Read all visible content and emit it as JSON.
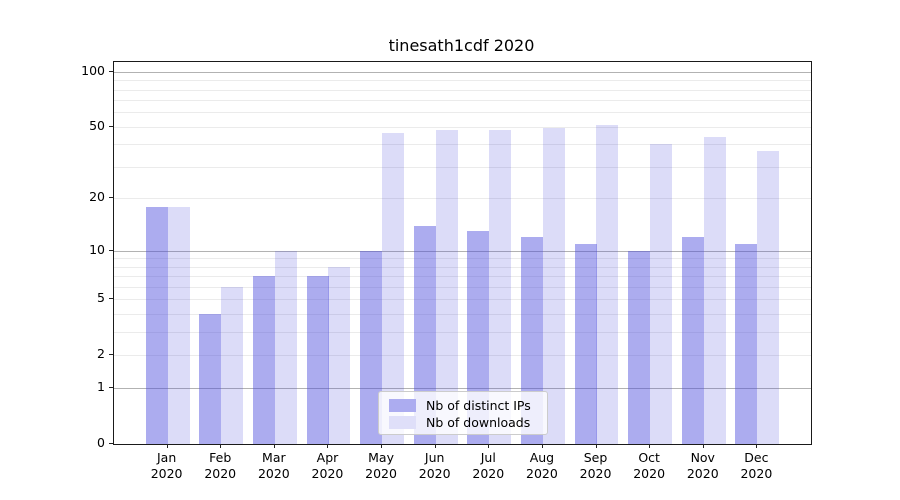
{
  "title": "tinesath1cdf 2020",
  "legend": {
    "items": [
      {
        "label": "Nb of distinct IPs",
        "swatch_color": "#acacf0"
      },
      {
        "label": "Nb of downloads",
        "swatch_color": "#dfdff9"
      }
    ]
  },
  "axes": {
    "y_tick_labels": [
      "100",
      "50",
      "20",
      "10",
      "5",
      "2",
      "1",
      "0"
    ],
    "x_tick_labels": [
      "Jan 2020",
      "Feb 2020",
      "Mar 2020",
      "Apr 2020",
      "May 2020",
      "Jun 2020",
      "Jul 2020",
      "Aug 2020",
      "Sep 2020",
      "Oct 2020",
      "Nov 2020",
      "Dec 2020"
    ]
  },
  "chart_data": {
    "type": "bar",
    "title": "tinesath1cdf 2020",
    "categories": [
      "Jan 2020",
      "Feb 2020",
      "Mar 2020",
      "Apr 2020",
      "May 2020",
      "Jun 2020",
      "Jul 2020",
      "Aug 2020",
      "Sep 2020",
      "Oct 2020",
      "Nov 2020",
      "Dec 2020"
    ],
    "series": [
      {
        "name": "Nb of distinct IPs",
        "values": [
          18,
          4,
          7,
          7,
          10,
          14,
          13,
          12,
          11,
          10,
          12,
          11
        ],
        "fill": "rgba(70,70,220,0.45)"
      },
      {
        "name": "Nb of downloads",
        "values": [
          18,
          6,
          10,
          8,
          46,
          48,
          48,
          49,
          51,
          40,
          44,
          37
        ],
        "fill": "rgba(70,70,220,0.19)"
      }
    ],
    "xlabel": "",
    "ylabel": "",
    "yscale": "log1p",
    "ylim": [
      0,
      113
    ],
    "ytick_values": [
      0,
      1,
      2,
      5,
      10,
      20,
      50,
      100
    ],
    "major_grid_values": [
      1,
      10,
      100
    ],
    "minor_grid_values": [
      2,
      3,
      4,
      5,
      6,
      7,
      8,
      9,
      20,
      30,
      40,
      50,
      60,
      70,
      80,
      90
    ],
    "grid": "horizontal major+minor",
    "legend_position": "lower center"
  }
}
